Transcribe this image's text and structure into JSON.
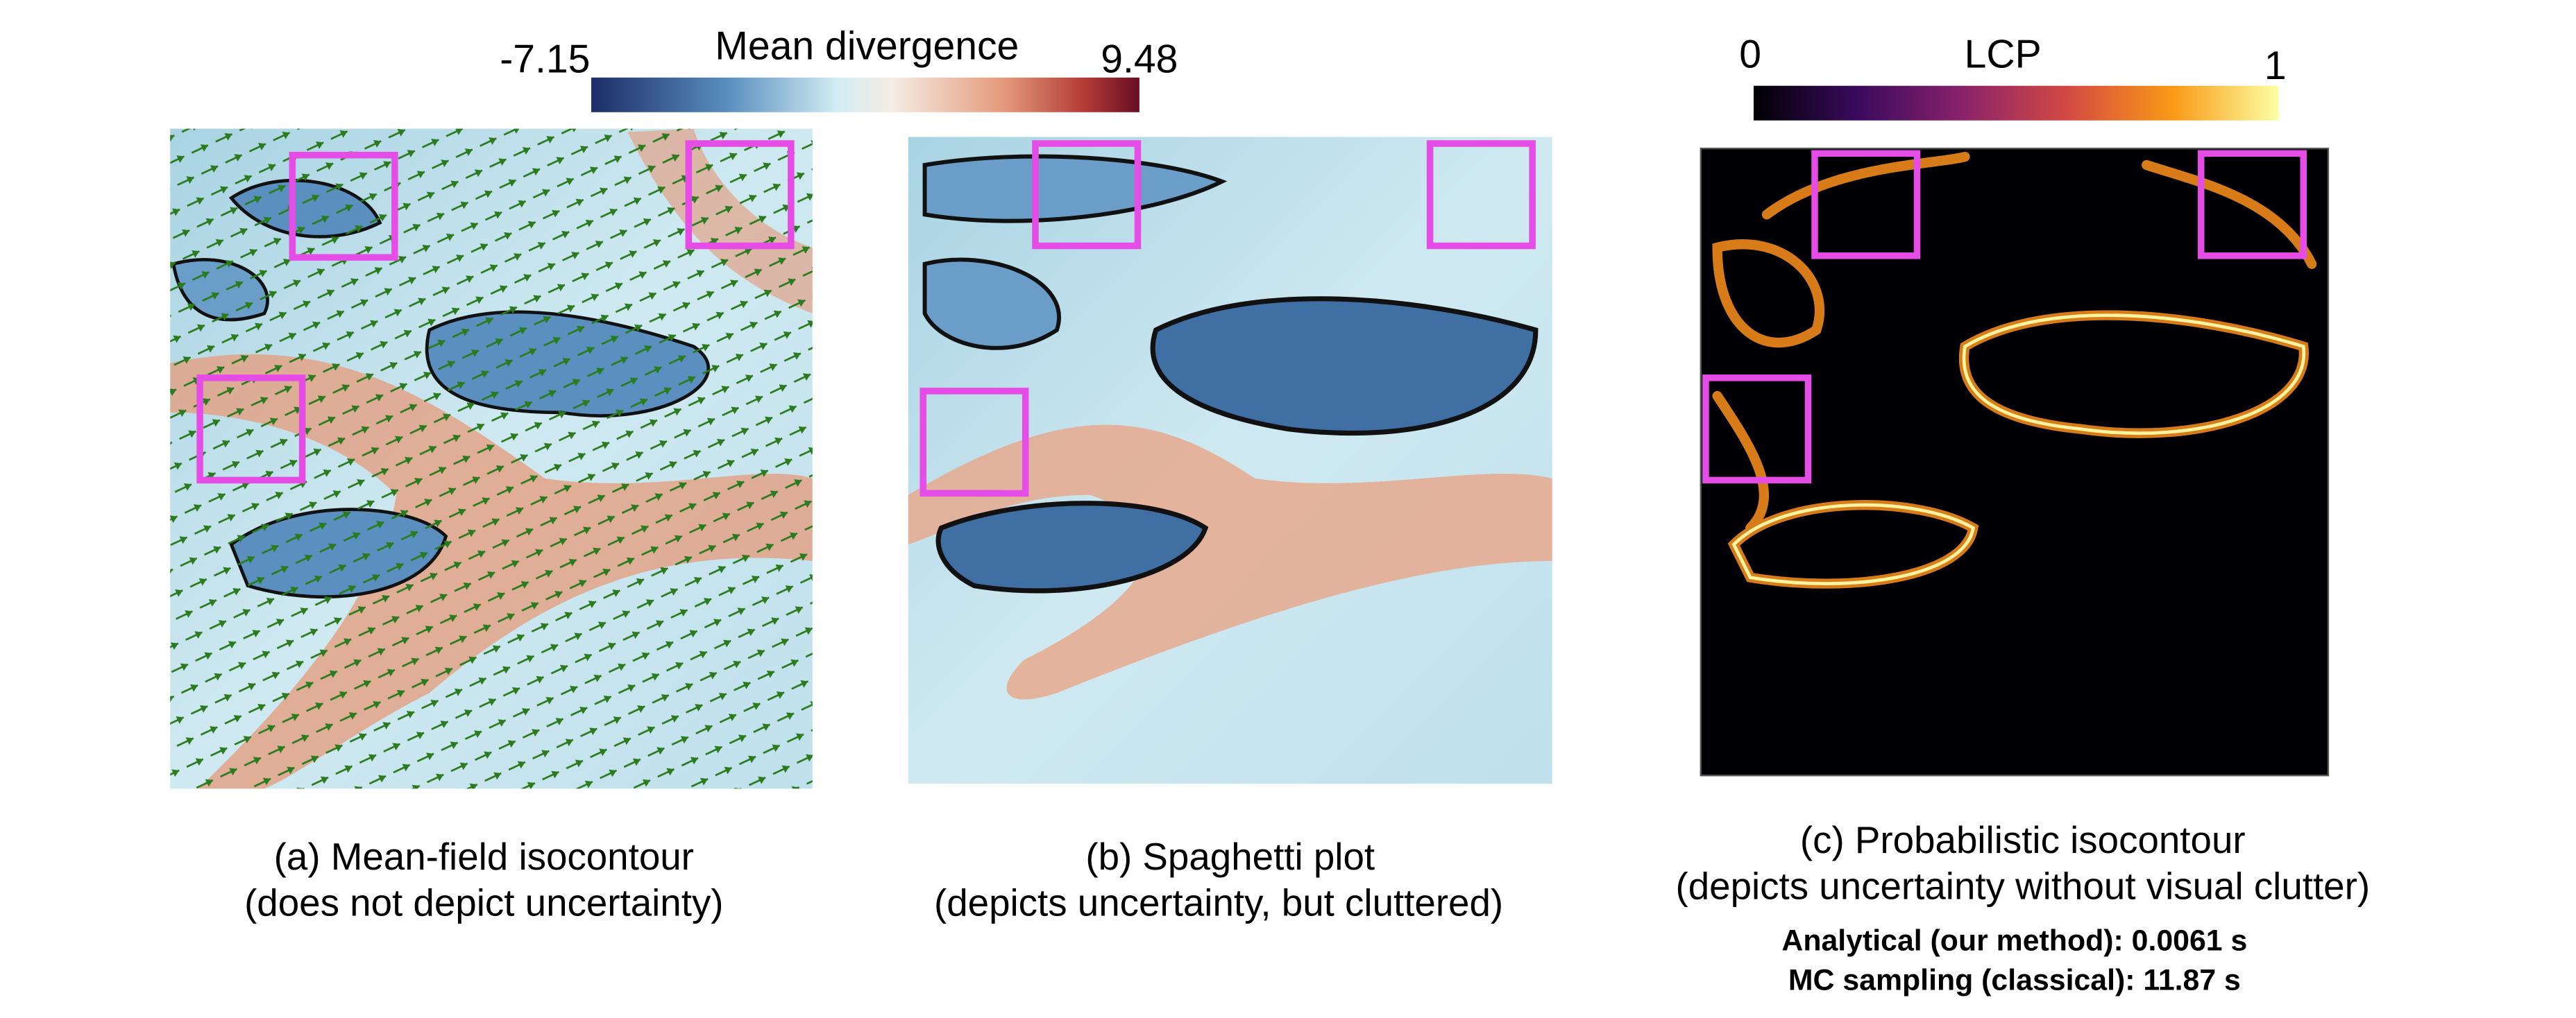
{
  "colorbars": [
    {
      "title": "Mean divergence",
      "min": "-7.15",
      "max": "9.48"
    },
    {
      "title": "LCP",
      "min": "0",
      "max": "1"
    }
  ],
  "panels": [
    {
      "caption": [
        "(a) Mean-field isocontour",
        "(does not depict uncertainty)"
      ]
    },
    {
      "caption": [
        "(b) Spaghetti plot",
        "(depicts uncertainty, but cluttered)"
      ]
    },
    {
      "caption": [
        "(c) Probabilistic isocontour",
        "(depicts uncertainty without visual clutter)"
      ]
    }
  ],
  "timings": [
    "Analytical (our method): 0.0061 s",
    "MC sampling (classical): 11.87 s"
  ]
}
